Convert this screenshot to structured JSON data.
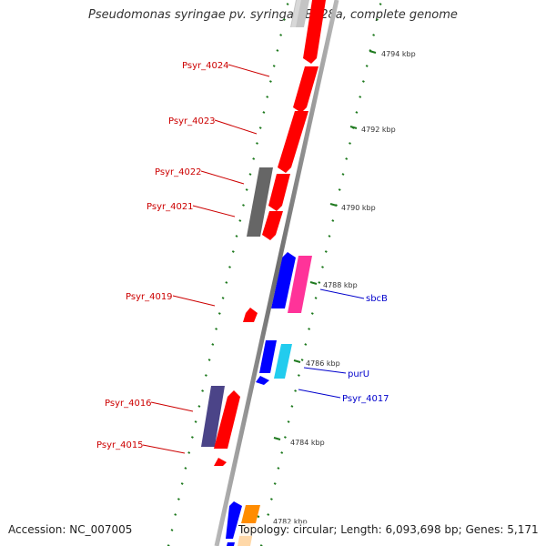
{
  "title": "Pseudomonas syringae pv. syringae B728a, complete genome",
  "footer": {
    "accession": "Accession: NC_007005",
    "stats": "Topology: circular; Length: 6,093,698 bp; Genes: 5,171"
  },
  "colors": {
    "backbone": "#8a8a8a",
    "tick": "#1f7a1f",
    "reverse_label": "#cc0000",
    "forward_label": "#0000cc",
    "red": "#ff0000",
    "blue": "#0000ff",
    "pink": "#ff3399",
    "cyan": "#22ccee",
    "slate": "#4b4488",
    "gray": "#666666",
    "lightgray": "#c4c4c4",
    "orange": "#ff8c00",
    "peach": "#ffd8a8"
  },
  "kbp_ticks": [
    "4794 kbp",
    "4792 kbp",
    "4790 kbp",
    "4788 kbp",
    "4786 kbp",
    "4784 kbp",
    "4782 kbp"
  ],
  "reverse_labels": [
    "Psyr_4024",
    "Psyr_4023",
    "Psyr_4022",
    "Psyr_4021",
    "Psyr_4019",
    "Psyr_4016",
    "Psyr_4015"
  ],
  "forward_labels": [
    "sbcB",
    "purU",
    "Psyr_4017"
  ]
}
